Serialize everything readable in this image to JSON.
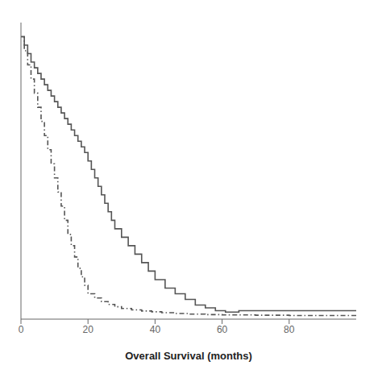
{
  "chart_data": {
    "type": "line",
    "xlabel": "Overall Survival (months)",
    "xlim": [
      0,
      100
    ],
    "ylim": [
      0,
      1.05
    ],
    "xticks": [
      0,
      20,
      40,
      60,
      80
    ],
    "tick_labels": "x",
    "grid": false,
    "series": [
      {
        "color": "#555555",
        "line_style": "solid",
        "x": [
          0,
          1,
          1,
          2,
          2,
          3,
          3,
          4,
          4,
          5,
          5,
          6,
          6,
          7,
          7,
          8,
          8,
          9,
          9,
          10,
          10,
          11,
          11,
          12,
          12,
          13,
          13,
          14,
          14,
          15,
          15,
          16,
          16,
          17,
          17,
          18,
          18,
          19,
          19,
          20,
          20,
          21,
          21,
          22,
          22,
          23,
          23,
          24,
          24,
          25,
          25,
          26,
          26,
          27,
          27,
          28,
          28,
          30,
          30,
          32,
          32,
          34,
          34,
          36,
          36,
          38,
          38,
          40,
          40,
          43,
          43,
          46,
          46,
          49,
          49,
          52,
          52,
          55,
          55,
          58,
          58,
          61,
          61,
          65,
          65,
          100
        ],
        "values": [
          1.0,
          1.0,
          0.97,
          0.97,
          0.94,
          0.94,
          0.91,
          0.91,
          0.89,
          0.89,
          0.87,
          0.87,
          0.85,
          0.85,
          0.83,
          0.83,
          0.81,
          0.81,
          0.79,
          0.79,
          0.77,
          0.77,
          0.75,
          0.75,
          0.73,
          0.73,
          0.71,
          0.71,
          0.69,
          0.69,
          0.67,
          0.67,
          0.65,
          0.65,
          0.63,
          0.63,
          0.61,
          0.61,
          0.59,
          0.59,
          0.56,
          0.56,
          0.53,
          0.53,
          0.5,
          0.5,
          0.47,
          0.47,
          0.44,
          0.44,
          0.41,
          0.41,
          0.38,
          0.38,
          0.35,
          0.35,
          0.32,
          0.32,
          0.29,
          0.29,
          0.26,
          0.26,
          0.23,
          0.23,
          0.2,
          0.2,
          0.17,
          0.17,
          0.14,
          0.14,
          0.11,
          0.11,
          0.09,
          0.09,
          0.07,
          0.07,
          0.05,
          0.05,
          0.04,
          0.04,
          0.03,
          0.03,
          0.025,
          0.025,
          0.03,
          0.03
        ]
      },
      {
        "color": "#555555",
        "line_style": "dashdot",
        "x": [
          0,
          1,
          1,
          2,
          2,
          3,
          3,
          4,
          4,
          5,
          5,
          6,
          6,
          7,
          7,
          8,
          8,
          9,
          9,
          10,
          10,
          11,
          11,
          12,
          12,
          13,
          13,
          14,
          14,
          15,
          15,
          16,
          16,
          17,
          17,
          18,
          18,
          19,
          19,
          20,
          20,
          22,
          22,
          24,
          24,
          26,
          26,
          28,
          28,
          30,
          30,
          33,
          33,
          36,
          36,
          39,
          39,
          42,
          42,
          46,
          46,
          50,
          50,
          55,
          55,
          60,
          60,
          70,
          70,
          80,
          80,
          100
        ],
        "values": [
          1.0,
          1.0,
          0.95,
          0.95,
          0.9,
          0.9,
          0.85,
          0.85,
          0.8,
          0.8,
          0.75,
          0.75,
          0.7,
          0.7,
          0.65,
          0.65,
          0.6,
          0.6,
          0.55,
          0.55,
          0.5,
          0.5,
          0.45,
          0.45,
          0.4,
          0.4,
          0.35,
          0.35,
          0.3,
          0.3,
          0.26,
          0.26,
          0.22,
          0.22,
          0.18,
          0.18,
          0.15,
          0.15,
          0.12,
          0.12,
          0.09,
          0.09,
          0.075,
          0.075,
          0.062,
          0.062,
          0.052,
          0.052,
          0.044,
          0.044,
          0.038,
          0.038,
          0.033,
          0.033,
          0.029,
          0.029,
          0.026,
          0.026,
          0.023,
          0.023,
          0.02,
          0.02,
          0.018,
          0.018,
          0.016,
          0.016,
          0.015,
          0.015,
          0.014,
          0.014,
          0.013,
          0.013
        ]
      }
    ]
  }
}
